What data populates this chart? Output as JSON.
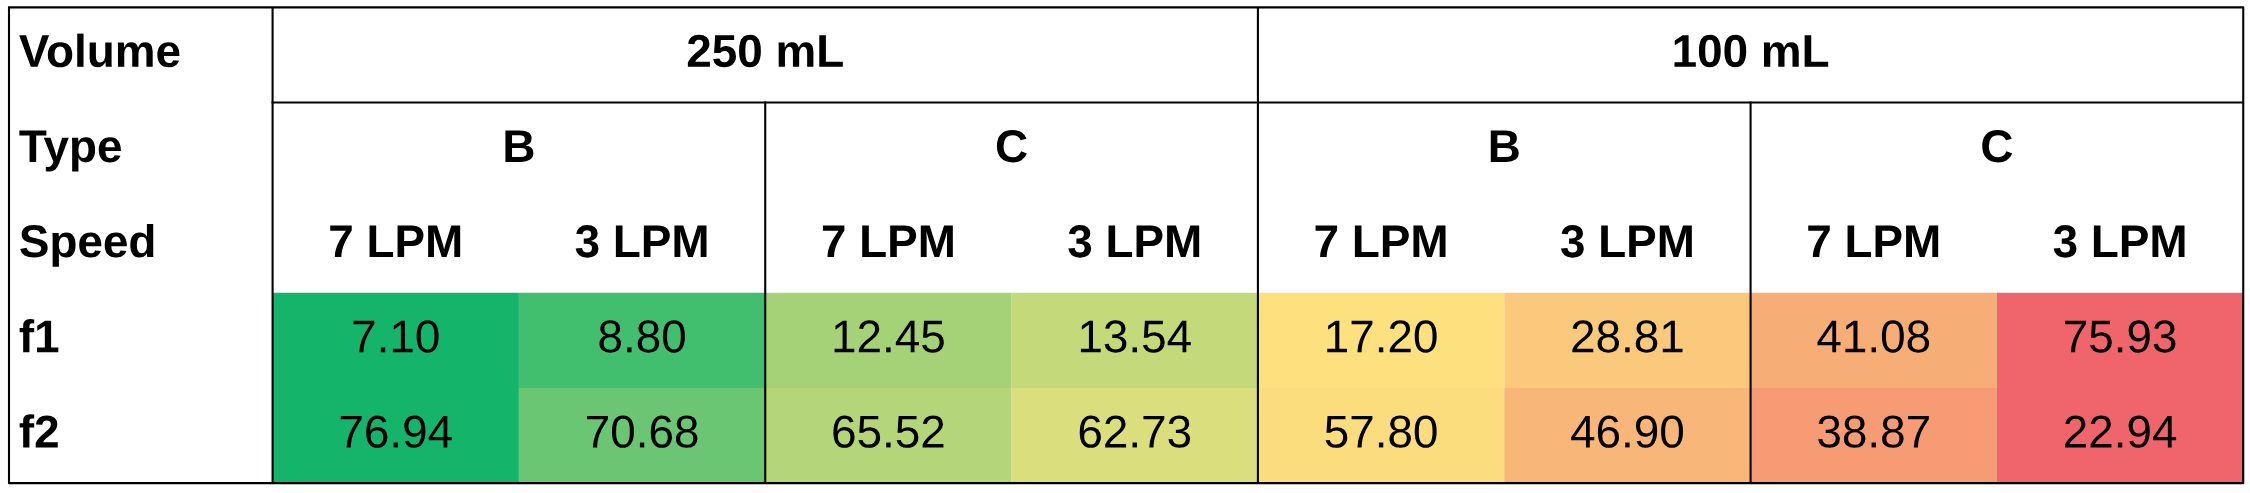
{
  "chart_data": {
    "type": "heatmap",
    "categories": [
      "7 LPM",
      "3 LPM",
      "7 LPM",
      "3 LPM",
      "7 LPM",
      "3 LPM",
      "7 LPM",
      "3 LPM"
    ],
    "y_categories": [
      "f1",
      "f2"
    ],
    "data_labels": true,
    "cells": [
      [
        7.1,
        8.8,
        12.45,
        13.54,
        17.2,
        28.81,
        41.08,
        75.93
      ],
      [
        76.94,
        70.68,
        65.52,
        62.73,
        57.8,
        46.9,
        38.87,
        22.94
      ]
    ],
    "cell_labels": [
      [
        "7.10",
        "8.80",
        "12.45",
        "13.54",
        "17.20",
        "28.81",
        "41.08",
        "75.93"
      ],
      [
        "76.94",
        "70.68",
        "65.52",
        "62.73",
        "57.80",
        "46.90",
        "38.87",
        "22.94"
      ]
    ],
    "colors": [
      [
        "#15b46b",
        "#fde57f",
        "#f0646b"
      ],
      [
        "#f0646b",
        "#fde57f",
        "#15b46b"
      ]
    ],
    "annotations": [
      "Volume",
      "Type",
      "Speed",
      "250 mL",
      "100 mL",
      "B",
      "C",
      "B",
      "C"
    ]
  }
}
